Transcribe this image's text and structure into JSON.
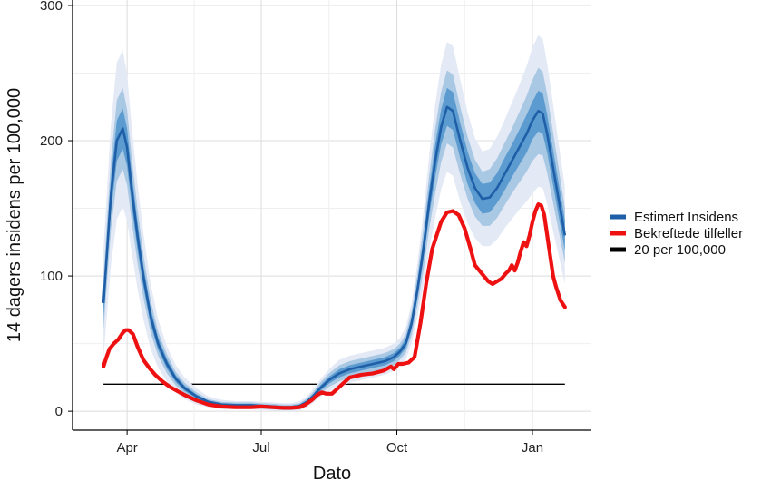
{
  "chart_data": {
    "type": "line",
    "title": "",
    "xlabel": "Dato",
    "ylabel": "14 dagers insidens per 100,000",
    "x_unit": "days since 2020-03-01",
    "xlim": [
      -6,
      346
    ],
    "ylim": [
      -14,
      304
    ],
    "yticks": [
      0,
      100,
      200,
      300
    ],
    "xticks": [
      {
        "label": "Apr",
        "value": 31
      },
      {
        "label": "Jul",
        "value": 122
      },
      {
        "label": "Oct",
        "value": 214
      },
      {
        "label": "Jan",
        "value": 306
      }
    ],
    "grid": true,
    "legend_position": "right",
    "series": [
      {
        "name": "Estimert Insidens",
        "color": "#1f5fa8",
        "x": [
          15,
          20,
          24,
          28,
          31,
          34,
          38,
          42,
          47,
          52,
          58,
          64,
          70,
          78,
          86,
          95,
          105,
          115,
          122,
          130,
          137,
          142,
          148,
          153,
          157,
          162,
          168,
          175,
          182,
          190,
          198,
          206,
          212,
          216,
          220,
          224,
          228,
          232,
          236,
          240,
          244,
          248,
          252,
          257,
          262,
          267,
          272,
          277,
          282,
          287,
          292,
          297,
          302,
          306,
          310,
          313,
          316,
          320,
          324,
          328
        ],
        "values": [
          80,
          160,
          200,
          209,
          195,
          165,
          130,
          100,
          70,
          50,
          35,
          24,
          17,
          11,
          7,
          5,
          4.5,
          4.5,
          4,
          3.5,
          3,
          3,
          4,
          7,
          11,
          17,
          23,
          28,
          31,
          33,
          35,
          37,
          40,
          44,
          50,
          65,
          90,
          120,
          155,
          185,
          210,
          225,
          222,
          200,
          180,
          165,
          157,
          158,
          165,
          175,
          185,
          195,
          205,
          215,
          222,
          220,
          205,
          180,
          155,
          130
        ],
        "band_inner": [
          10,
          13,
          15,
          15,
          14,
          12,
          10,
          8,
          6,
          4.5,
          3.5,
          2.5,
          2,
          1.5,
          1,
          1,
          1,
          1,
          1,
          1,
          1,
          1,
          1,
          1.2,
          1.5,
          2,
          2.5,
          3,
          3,
          3,
          3,
          3,
          3,
          3,
          3.5,
          4.5,
          6,
          8,
          10,
          12,
          13,
          14,
          14,
          13,
          12,
          11,
          11,
          11,
          11,
          12,
          12,
          13,
          14,
          14,
          15,
          15,
          14,
          13,
          12,
          11
        ],
        "band_mid": [
          20,
          26,
          30,
          30,
          28,
          24,
          20,
          16,
          12,
          9,
          7,
          5,
          4,
          3,
          2,
          2,
          2,
          2,
          2,
          2,
          2,
          2,
          2,
          2.5,
          3,
          4,
          5,
          6,
          6,
          6,
          6,
          6,
          6,
          6,
          7,
          9,
          12,
          16,
          20,
          24,
          26,
          27,
          27,
          25,
          23,
          21,
          20,
          21,
          22,
          23,
          24,
          26,
          28,
          30,
          32,
          31,
          29,
          26,
          23,
          20
        ],
        "band_outer": [
          40,
          52,
          58,
          58,
          54,
          47,
          39,
          32,
          24,
          18,
          13,
          10,
          8,
          6,
          4,
          3.5,
          3,
          3,
          3,
          3,
          3,
          3,
          3.5,
          4,
          5,
          6.5,
          8,
          10,
          10,
          10,
          10,
          10,
          10,
          10,
          12,
          15,
          20,
          27,
          35,
          42,
          46,
          48,
          48,
          45,
          41,
          37,
          35,
          36,
          38,
          40,
          43,
          46,
          50,
          54,
          56,
          55,
          52,
          47,
          41,
          36
        ]
      },
      {
        "name": "Bekreftede tilfeller",
        "color": "#ee1111",
        "x": [
          15,
          17,
          19,
          22,
          25,
          28,
          30,
          32,
          35,
          38,
          42,
          46,
          50,
          55,
          60,
          65,
          70,
          78,
          86,
          95,
          105,
          115,
          122,
          130,
          137,
          142,
          148,
          152,
          156,
          158,
          160,
          163,
          166,
          170,
          175,
          182,
          190,
          198,
          205,
          210,
          212,
          215,
          218,
          222,
          226,
          230,
          234,
          238,
          241,
          244,
          248,
          252,
          256,
          260,
          264,
          267,
          270,
          273,
          276,
          279,
          282,
          285,
          288,
          290,
          292,
          294,
          296,
          298,
          300,
          302,
          304,
          306,
          308,
          310,
          312,
          314,
          316,
          318,
          320,
          322,
          325,
          328
        ],
        "values": [
          33,
          40,
          46,
          50,
          53,
          58,
          60,
          60,
          57,
          48,
          38,
          32,
          27,
          22,
          18,
          15,
          12,
          8,
          5,
          3.5,
          3,
          3,
          3.5,
          3,
          2.5,
          2.5,
          3,
          5,
          8,
          10,
          12,
          14,
          13,
          13,
          18,
          25,
          27,
          28,
          30,
          33,
          31,
          35,
          35,
          36,
          40,
          65,
          95,
          120,
          130,
          140,
          147,
          148,
          145,
          135,
          120,
          108,
          104,
          100,
          96,
          94,
          96,
          98,
          102,
          104,
          108,
          104,
          110,
          118,
          125,
          122,
          130,
          140,
          148,
          153,
          152,
          145,
          130,
          115,
          100,
          92,
          82,
          77
        ]
      },
      {
        "name": "20 per 100,000",
        "color": "#000000",
        "x": [
          15,
          328
        ],
        "values": [
          20,
          20
        ]
      }
    ]
  }
}
